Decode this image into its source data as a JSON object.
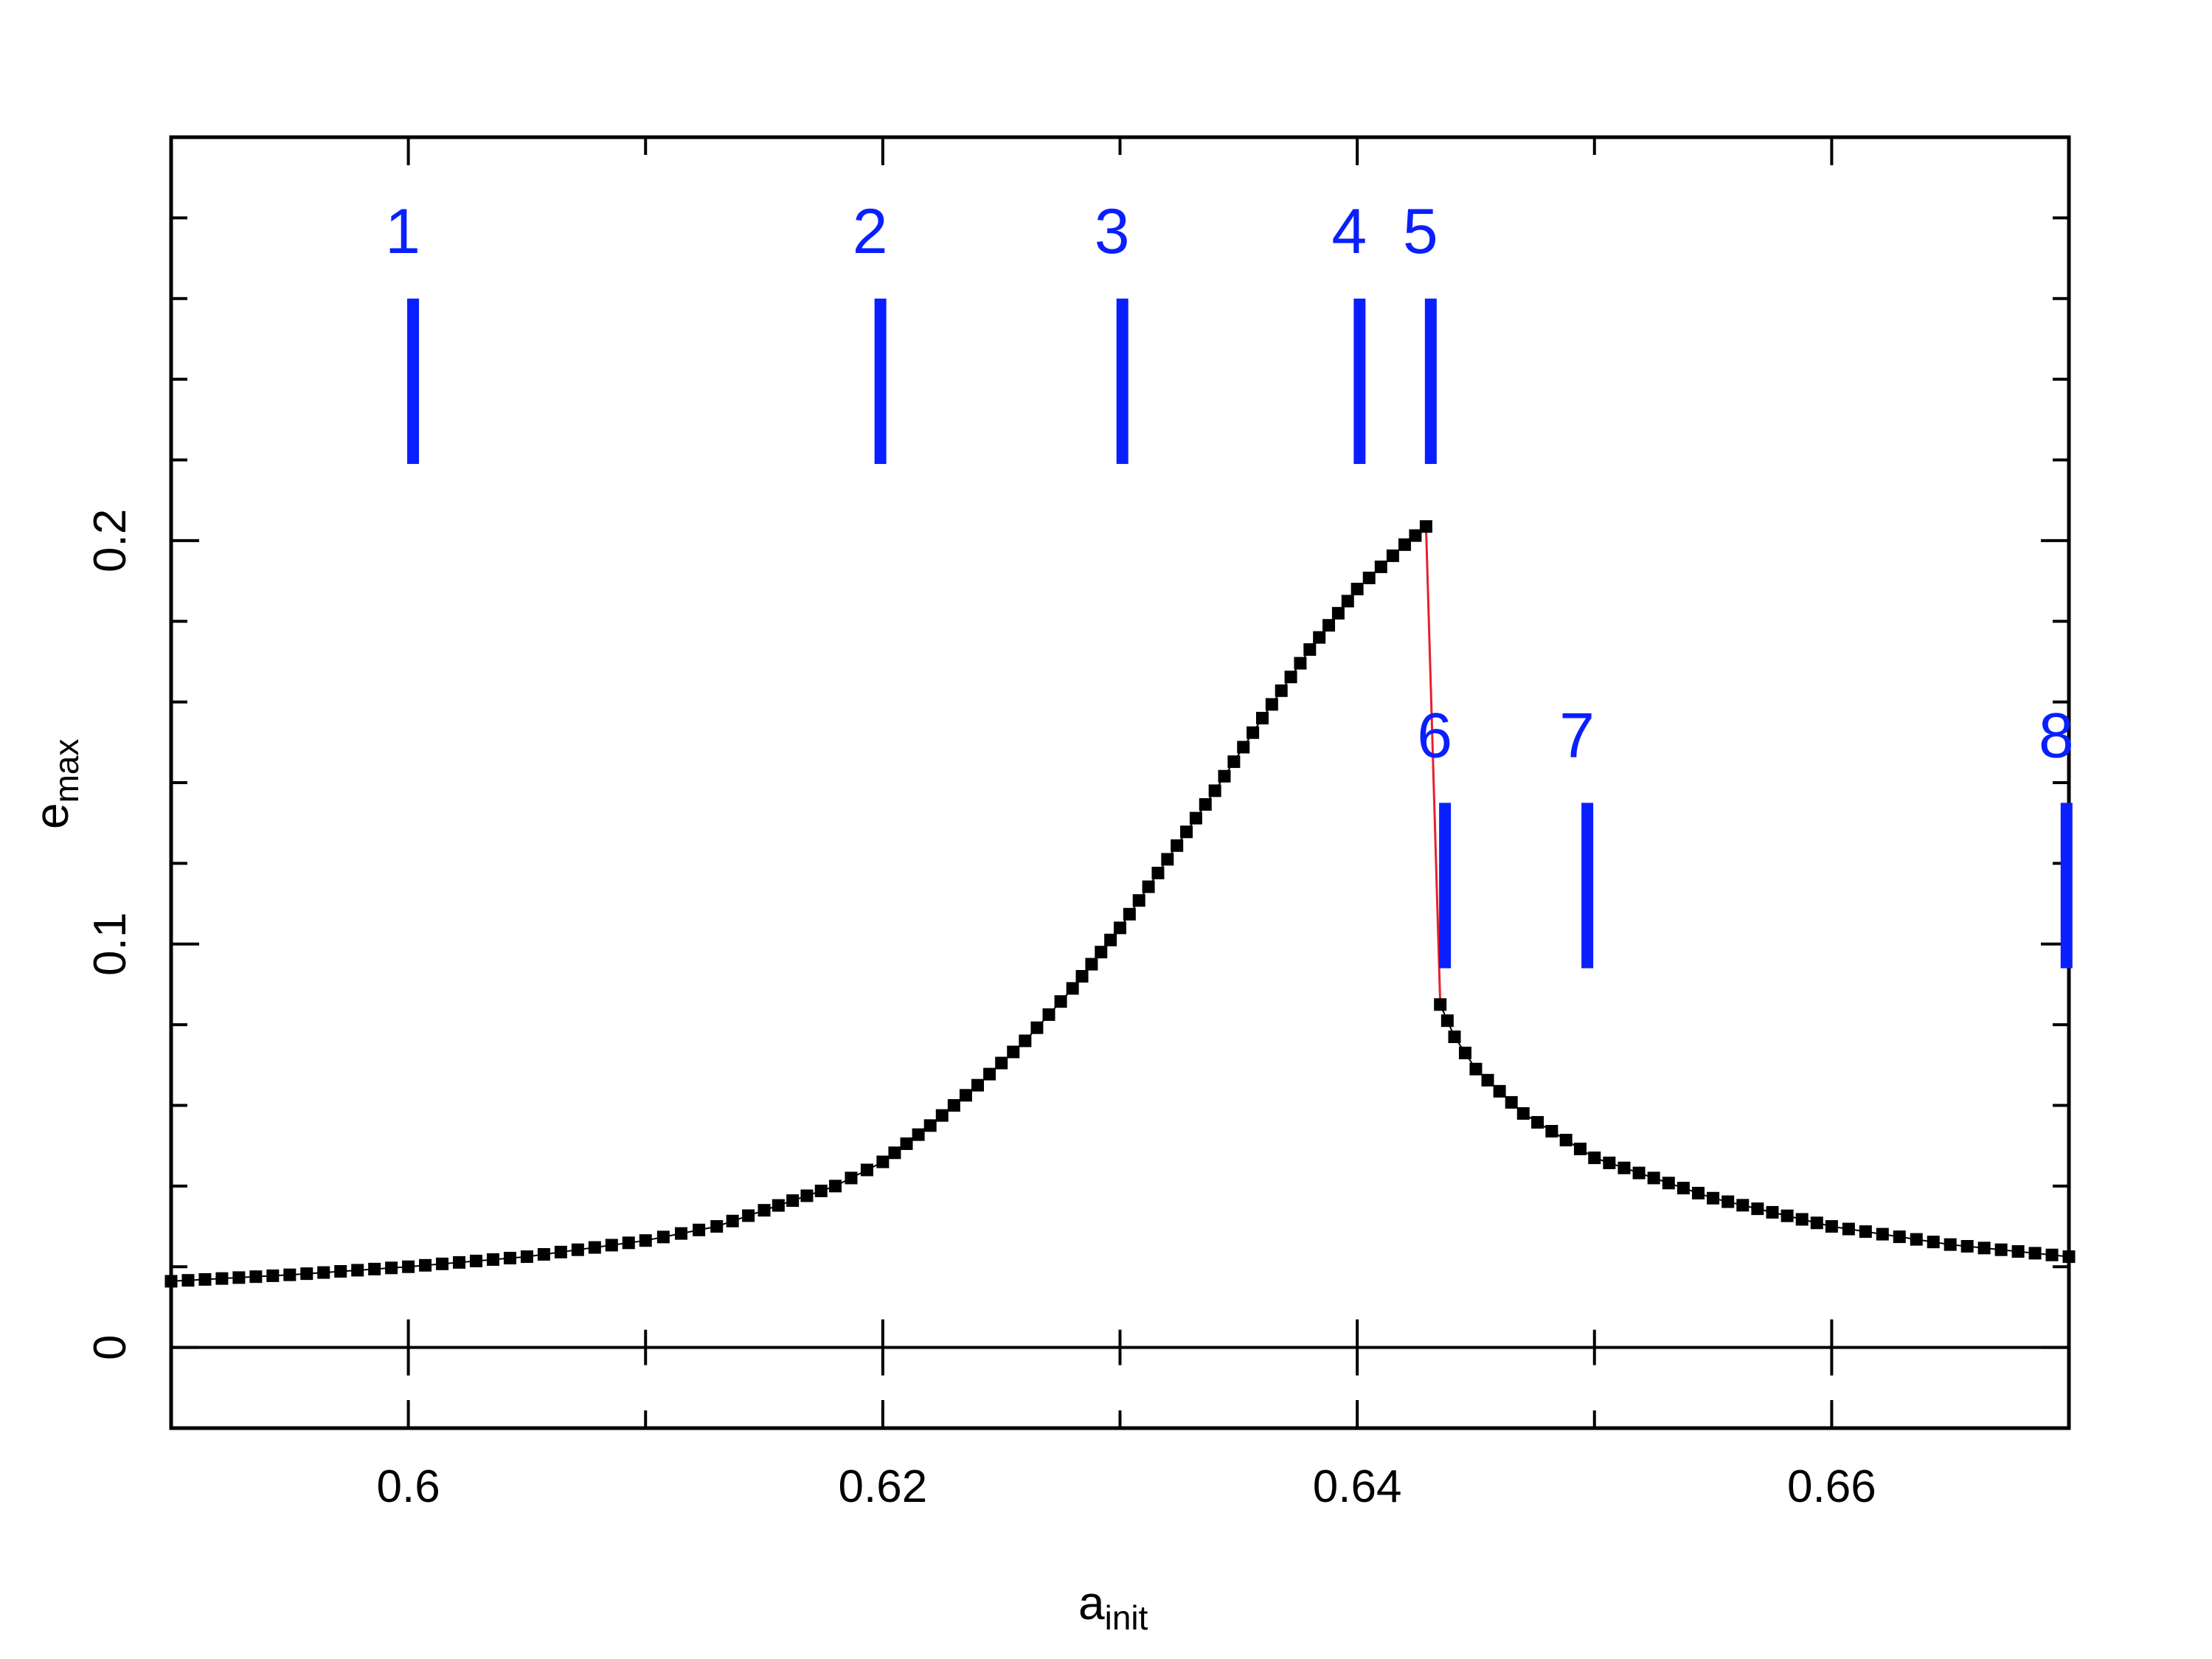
{
  "chart_data": {
    "type": "scatter",
    "title": "",
    "xlabel": {
      "base": "a",
      "sub": "init"
    },
    "ylabel": {
      "base": "e",
      "sub": "max"
    },
    "xlim": [
      0.59,
      0.67
    ],
    "ylim": [
      -0.02,
      0.3
    ],
    "x_ticks": [
      {
        "value": 0.6,
        "label": "0.6"
      },
      {
        "value": 0.62,
        "label": "0.62"
      },
      {
        "value": 0.64,
        "label": "0.64"
      },
      {
        "value": 0.66,
        "label": "0.66"
      }
    ],
    "y_ticks": [
      {
        "value": 0,
        "label": "0"
      },
      {
        "value": 0.1,
        "label": "0.1"
      },
      {
        "value": 0.2,
        "label": "0.2"
      }
    ],
    "x_minor_ticks": [
      0.6,
      0.61,
      0.62,
      0.63,
      0.64,
      0.65,
      0.66
    ],
    "y_minor_ticks": [
      0.02,
      0.04,
      0.06,
      0.08,
      0.12,
      0.14,
      0.16,
      0.18,
      0.22,
      0.24,
      0.26,
      0.28
    ],
    "zero_line": true,
    "grid": false,
    "series": [
      {
        "marker": "square",
        "color": "#000000",
        "points": [
          [
            0.59,
            0.0164
          ],
          [
            0.595,
            0.018
          ],
          [
            0.6,
            0.02
          ],
          [
            0.605,
            0.0225
          ],
          [
            0.61,
            0.0265
          ],
          [
            0.613,
            0.03
          ],
          [
            0.615,
            0.034
          ],
          [
            0.618,
            0.04
          ],
          [
            0.62,
            0.046
          ],
          [
            0.622,
            0.055
          ],
          [
            0.624,
            0.065
          ],
          [
            0.626,
            0.076
          ],
          [
            0.628,
            0.089
          ],
          [
            0.63,
            0.104
          ],
          [
            0.632,
            0.121
          ],
          [
            0.634,
            0.138
          ],
          [
            0.636,
            0.156
          ],
          [
            0.638,
            0.173
          ],
          [
            0.64,
            0.188
          ],
          [
            0.642,
            0.199
          ],
          [
            0.6429,
            0.2035
          ],
          [
            0.6435,
            0.085
          ],
          [
            0.6441,
            0.077
          ],
          [
            0.645,
            0.069
          ],
          [
            0.647,
            0.058
          ],
          [
            0.65,
            0.047
          ],
          [
            0.655,
            0.037
          ],
          [
            0.66,
            0.03
          ],
          [
            0.665,
            0.0255
          ],
          [
            0.67,
            0.0225
          ]
        ]
      }
    ],
    "jump_line": {
      "color": "#e8202a",
      "from": [
        0.6429,
        0.2035
      ],
      "to": [
        0.6435,
        0.085
      ]
    },
    "markers": {
      "color": "#0a1fff",
      "items": [
        {
          "label": "1",
          "x": 0.6002,
          "y_low": 0.219,
          "y_high": 0.26
        },
        {
          "label": "2",
          "x": 0.6199,
          "y_low": 0.219,
          "y_high": 0.26
        },
        {
          "label": "3",
          "x": 0.6301,
          "y_low": 0.219,
          "y_high": 0.26
        },
        {
          "label": "4",
          "x": 0.6401,
          "y_low": 0.219,
          "y_high": 0.26
        },
        {
          "label": "5",
          "x": 0.6431,
          "y_low": 0.219,
          "y_high": 0.26
        },
        {
          "label": "6",
          "x": 0.6437,
          "y_low": 0.094,
          "y_high": 0.135
        },
        {
          "label": "7",
          "x": 0.6497,
          "y_low": 0.094,
          "y_high": 0.135
        },
        {
          "label": "8",
          "x": 0.6699,
          "y_low": 0.094,
          "y_high": 0.135
        }
      ]
    }
  }
}
